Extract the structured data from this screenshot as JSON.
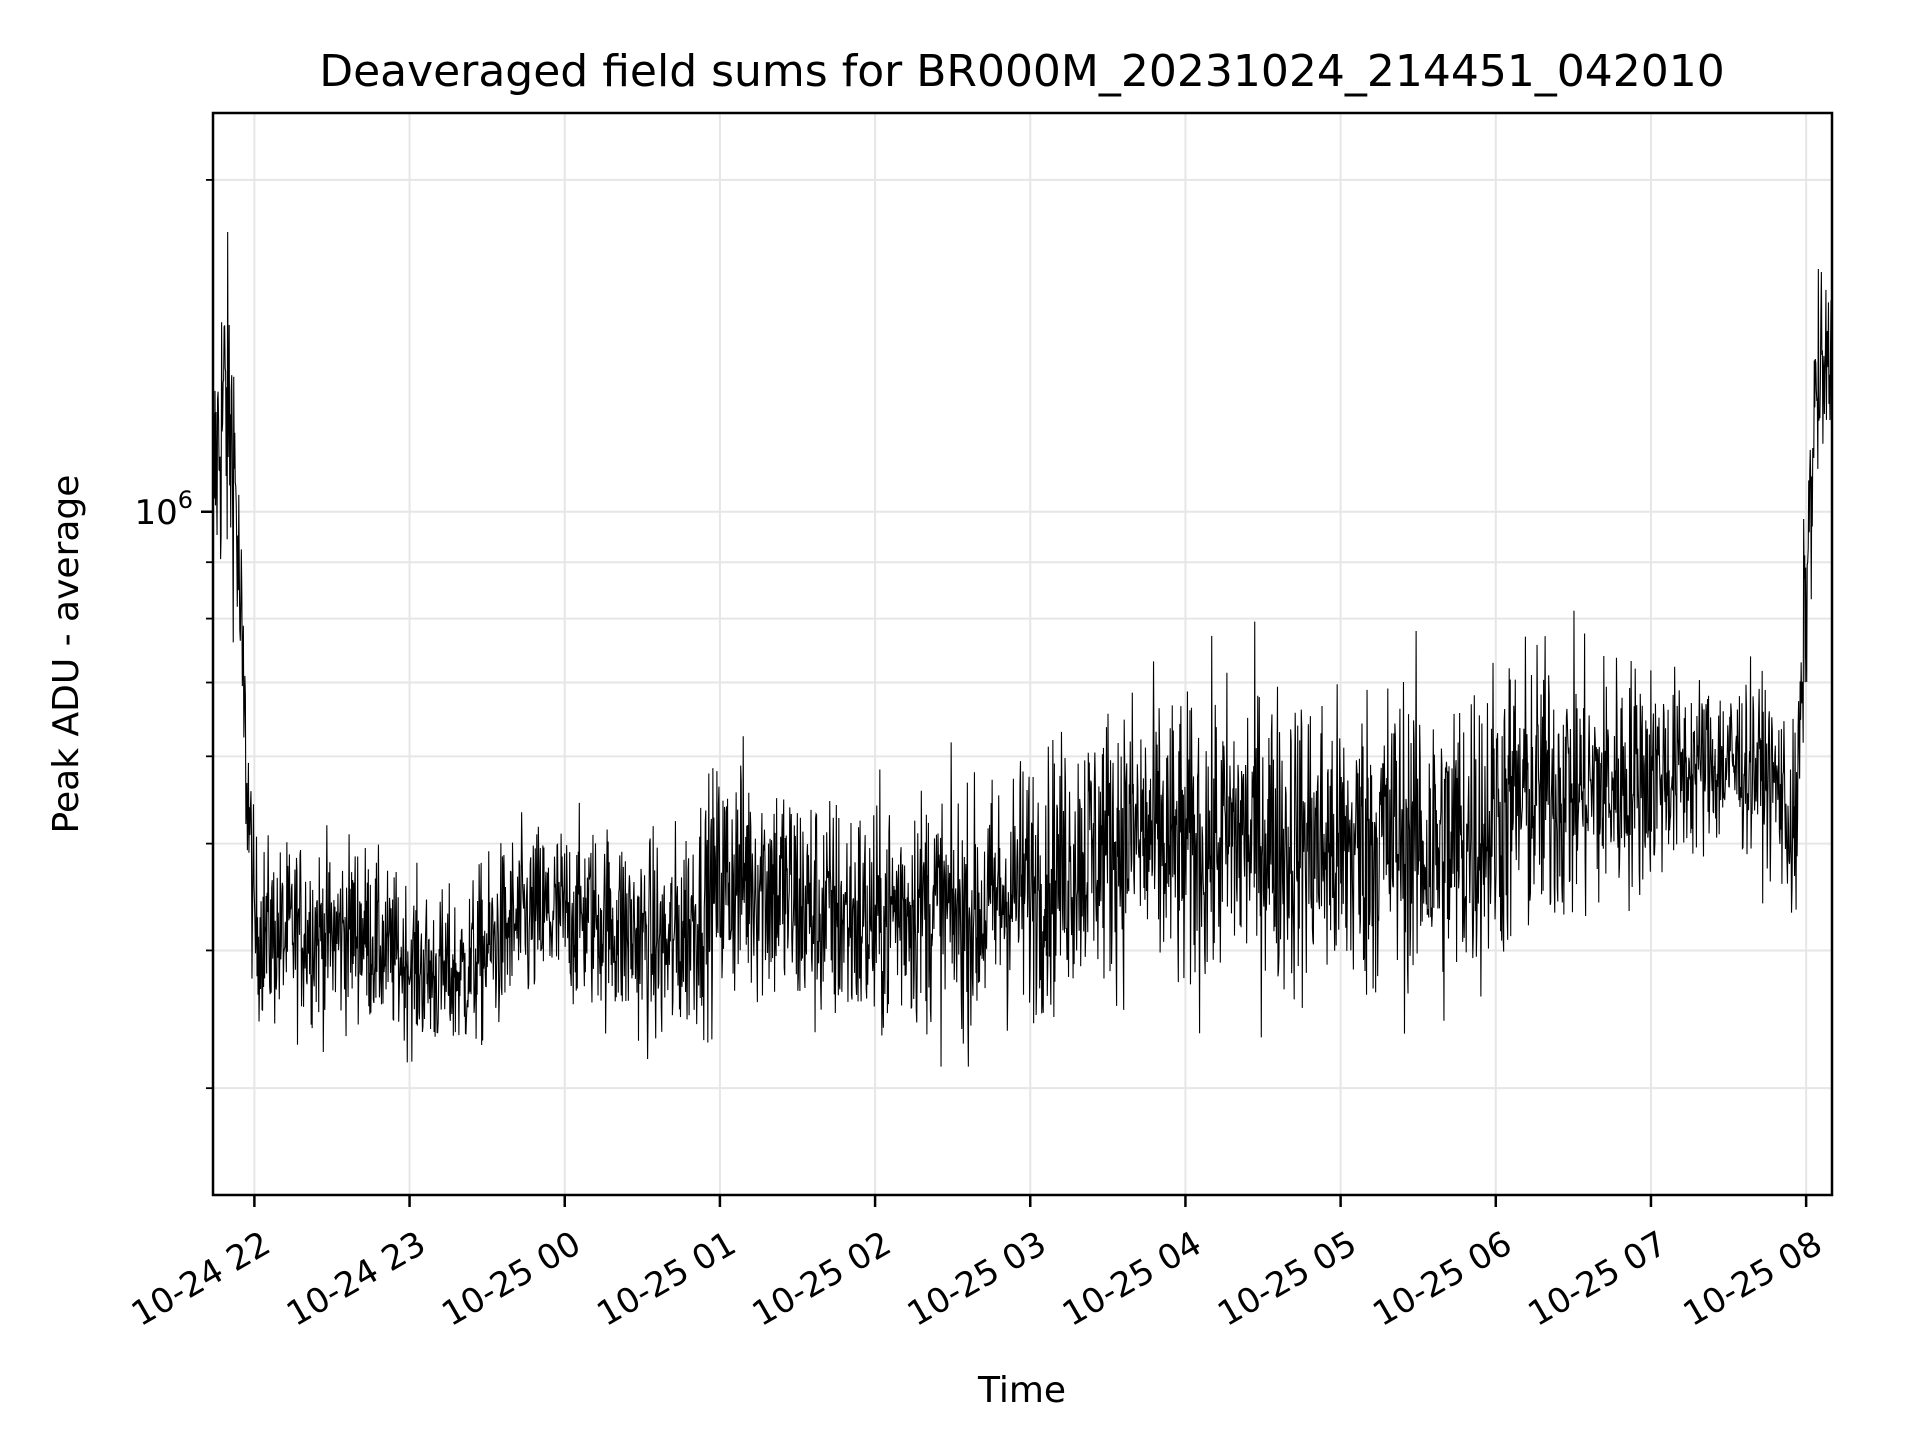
{
  "chart_data": {
    "type": "line",
    "title": "Deaveraged field sums for BR000M_20231024_214451_042010",
    "xlabel": "Time",
    "ylabel": "Peak ADU - average",
    "yscale": "log",
    "xlim": [
      "2023-10-24T21:44",
      "2023-10-25T08:10"
    ],
    "ylim": [
      240000,
      2300000
    ],
    "grid": true,
    "x_ticks": [
      {
        "label": "10-24 22",
        "t": "2023-10-24T22:00"
      },
      {
        "label": "10-24 23",
        "t": "2023-10-24T23:00"
      },
      {
        "label": "10-25 00",
        "t": "2023-10-25T00:00"
      },
      {
        "label": "10-25 01",
        "t": "2023-10-25T01:00"
      },
      {
        "label": "10-25 02",
        "t": "2023-10-25T02:00"
      },
      {
        "label": "10-25 03",
        "t": "2023-10-25T03:00"
      },
      {
        "label": "10-25 04",
        "t": "2023-10-25T04:00"
      },
      {
        "label": "10-25 05",
        "t": "2023-10-25T05:00"
      },
      {
        "label": "10-25 06",
        "t": "2023-10-25T06:00"
      },
      {
        "label": "10-25 07",
        "t": "2023-10-25T07:00"
      },
      {
        "label": "10-25 08",
        "t": "2023-10-25T08:00"
      }
    ],
    "y_major_ticks": [
      {
        "value": 1000000,
        "label": "10",
        "exponent": "6"
      }
    ],
    "y_minor_ticks": [
      300000,
      400000,
      500000,
      600000,
      700000,
      800000,
      900000,
      2000000
    ],
    "series": [
      {
        "color": "#000000",
        "x": [
          "2023-10-24T21:44",
          "2023-10-24T21:48",
          "2023-10-24T21:52",
          "2023-10-24T21:56",
          "2023-10-24T22:00",
          "2023-10-24T22:10",
          "2023-10-24T22:20",
          "2023-10-24T22:30",
          "2023-10-24T22:40",
          "2023-10-24T22:50",
          "2023-10-24T23:00",
          "2023-10-24T23:10",
          "2023-10-24T23:20",
          "2023-10-24T23:30",
          "2023-10-24T23:40",
          "2023-10-24T23:50",
          "2023-10-25T00:00",
          "2023-10-25T00:10",
          "2023-10-25T00:20",
          "2023-10-25T00:30",
          "2023-10-25T00:40",
          "2023-10-25T00:50",
          "2023-10-25T01:00",
          "2023-10-25T01:10",
          "2023-10-25T01:20",
          "2023-10-25T01:30",
          "2023-10-25T01:40",
          "2023-10-25T01:50",
          "2023-10-25T02:00",
          "2023-10-25T02:10",
          "2023-10-25T02:20",
          "2023-10-25T02:30",
          "2023-10-25T02:40",
          "2023-10-25T02:50",
          "2023-10-25T03:00",
          "2023-10-25T03:10",
          "2023-10-25T03:20",
          "2023-10-25T03:30",
          "2023-10-25T03:40",
          "2023-10-25T03:50",
          "2023-10-25T04:00",
          "2023-10-25T04:10",
          "2023-10-25T04:20",
          "2023-10-25T04:30",
          "2023-10-25T04:40",
          "2023-10-25T04:50",
          "2023-10-25T05:00",
          "2023-10-25T05:10",
          "2023-10-25T05:20",
          "2023-10-25T05:30",
          "2023-10-25T05:40",
          "2023-10-25T05:50",
          "2023-10-25T06:00",
          "2023-10-25T06:10",
          "2023-10-25T06:20",
          "2023-10-25T06:30",
          "2023-10-25T06:40",
          "2023-10-25T06:50",
          "2023-10-25T07:00",
          "2023-10-25T07:10",
          "2023-10-25T07:20",
          "2023-10-25T07:30",
          "2023-10-25T07:40",
          "2023-10-25T07:50",
          "2023-10-25T07:56",
          "2023-10-25T08:00",
          "2023-10-25T08:04",
          "2023-10-25T08:10"
        ],
        "y": [
          1050000,
          1250000,
          1150000,
          650000,
          420000,
          410000,
          420000,
          410000,
          420000,
          400000,
          390000,
          380000,
          380000,
          400000,
          420000,
          430000,
          430000,
          430000,
          420000,
          410000,
          400000,
          430000,
          460000,
          470000,
          460000,
          440000,
          430000,
          430000,
          420000,
          440000,
          440000,
          430000,
          430000,
          450000,
          460000,
          470000,
          490000,
          500000,
          510000,
          500000,
          490000,
          500000,
          510000,
          510000,
          500000,
          500000,
          490000,
          500000,
          510000,
          500000,
          490000,
          510000,
          530000,
          550000,
          560000,
          560000,
          560000,
          570000,
          580000,
          580000,
          590000,
          590000,
          590000,
          560000,
          500000,
          850000,
          1300000,
          1350000
        ],
        "noise_envelope": [
          1.35,
          1.55,
          1.45,
          1.3,
          1.25,
          1.25,
          1.25,
          1.25,
          1.25,
          1.22,
          1.22,
          1.22,
          1.22,
          1.25,
          1.25,
          1.25,
          1.25,
          1.25,
          1.28,
          1.28,
          1.3,
          1.32,
          1.34,
          1.36,
          1.36,
          1.36,
          1.34,
          1.34,
          1.34,
          1.34,
          1.34,
          1.34,
          1.34,
          1.36,
          1.38,
          1.38,
          1.38,
          1.4,
          1.42,
          1.44,
          1.44,
          1.44,
          1.45,
          1.45,
          1.46,
          1.46,
          1.46,
          1.47,
          1.47,
          1.47,
          1.48,
          1.48,
          1.46,
          1.44,
          1.42,
          1.4,
          1.38,
          1.35,
          1.32,
          1.26,
          1.24,
          1.24,
          1.24,
          1.24,
          1.3,
          1.3,
          1.3,
          1.25
        ]
      }
    ]
  }
}
